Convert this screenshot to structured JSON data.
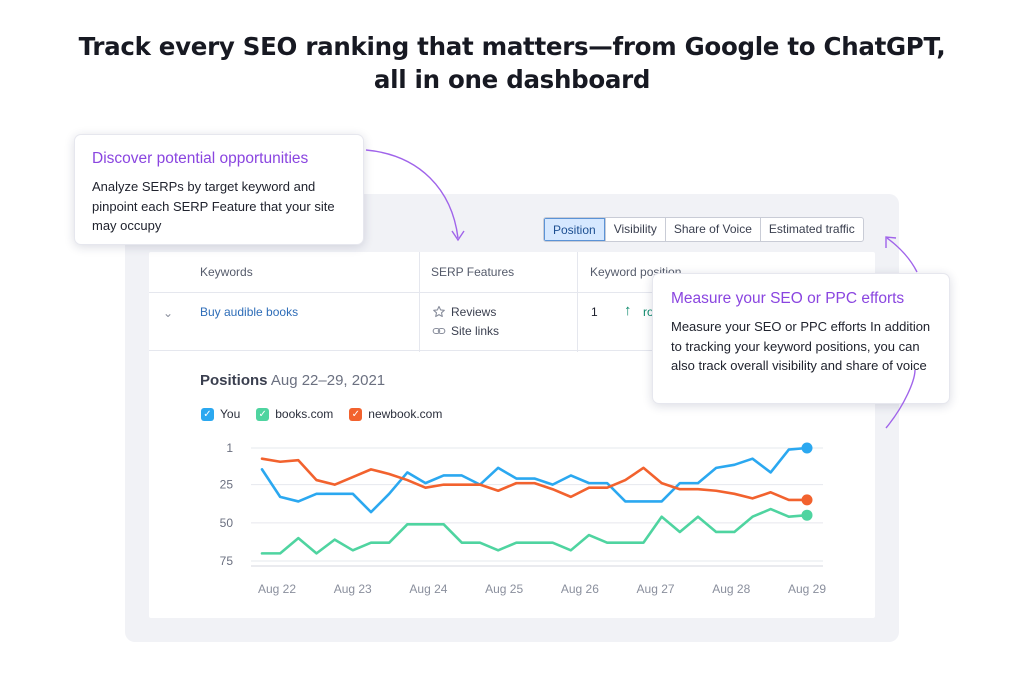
{
  "headline": {
    "line1": "Track every SEO ranking that matters—from Google to ChatGPT,",
    "line2": "all in one dashboard"
  },
  "tabs": [
    {
      "label": "Position",
      "active": true
    },
    {
      "label": "Visibility",
      "active": false
    },
    {
      "label": "Share of Voice",
      "active": false
    },
    {
      "label": "Estimated traffic",
      "active": false
    }
  ],
  "table": {
    "headers": {
      "keywords": "Keywords",
      "serp": "SERP Features",
      "position": "Keyword position"
    },
    "row": {
      "keyword": "Buy audible books",
      "features": [
        {
          "label": "Reviews",
          "icon": "star-icon"
        },
        {
          "label": "Site links",
          "icon": "link-icon"
        }
      ],
      "position": "1",
      "trend_text": "ro"
    }
  },
  "chart_header": {
    "title": "Positions",
    "range": "Aug 22–29, 2021"
  },
  "legend": [
    {
      "name": "You",
      "color": "#2ba8f0"
    },
    {
      "name": "books.com",
      "color": "#4fd4a0"
    },
    {
      "name": "newbook.com",
      "color": "#f2622e"
    }
  ],
  "callouts": {
    "discover": {
      "title": "Discover potential opportunities",
      "body": "Analyze SERPs by target keyword and pinpoint each SERP Feature that your site may occupy"
    },
    "measure": {
      "title": "Measure your SEO or PPC efforts",
      "body": "Measure your SEO or PPC efforts In addition to tracking your keyword positions, you can also track overall visibility and share of voice"
    }
  },
  "colors": {
    "accent_purple": "#8a45e0",
    "link_blue": "#2e6db8",
    "tab_active_bg": "#d6e8ff"
  },
  "chart_data": {
    "type": "line",
    "title": "Positions",
    "subtitle": "Aug 22–29, 2021",
    "x_ticks": [
      "Aug 22",
      "Aug 23",
      "Aug 24",
      "Aug 25",
      "Aug 26",
      "Aug 27",
      "Aug 28",
      "Aug 29"
    ],
    "y_ticks": [
      1,
      25,
      50,
      75
    ],
    "ylim": [
      1,
      75
    ],
    "y_inverted": true,
    "grid": "horizontal",
    "legend_position": "top-left",
    "series": [
      {
        "name": "You",
        "color": "#2ba8f0",
        "values": [
          15,
          33,
          36,
          31,
          31,
          31,
          43,
          31,
          17,
          24,
          19,
          19,
          25,
          14,
          21,
          21,
          25,
          19,
          24,
          24,
          36,
          36,
          36,
          24,
          24,
          14,
          12,
          8,
          17,
          2,
          1
        ]
      },
      {
        "name": "books.com",
        "color": "#4fd4a0",
        "values": [
          70,
          70,
          60,
          70,
          61,
          68,
          63,
          63,
          51,
          51,
          51,
          63,
          63,
          68,
          63,
          63,
          63,
          68,
          58,
          63,
          63,
          63,
          46,
          56,
          46,
          56,
          56,
          46,
          41,
          46,
          45
        ]
      },
      {
        "name": "newbook.com",
        "color": "#f2622e",
        "values": [
          8,
          10,
          9,
          22,
          25,
          20,
          15,
          18,
          22,
          27,
          25,
          25,
          25,
          29,
          24,
          24,
          28,
          33,
          27,
          27,
          22,
          14,
          24,
          28,
          28,
          29,
          31,
          34,
          30,
          35,
          35
        ]
      }
    ]
  }
}
